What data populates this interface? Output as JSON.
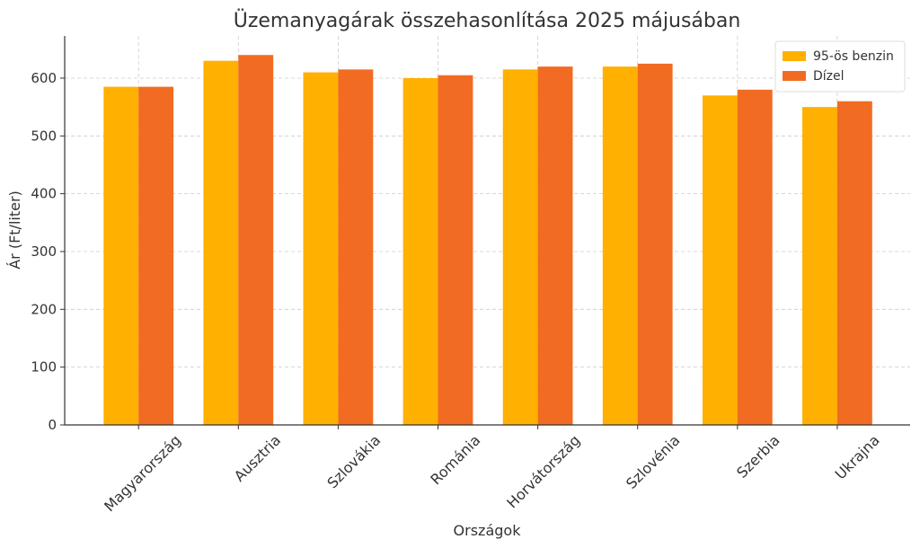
{
  "chart_data": {
    "type": "bar",
    "title": "Üzemanyagárak összehasonlítása 2025 májusában",
    "x_label": "Országok",
    "y_label": "Ár (Ft/liter)",
    "categories": [
      "Magyarország",
      "Ausztria",
      "Szlovákia",
      "Románia",
      "Horvátország",
      "Szlovénia",
      "Szerbia",
      "Ukrajna"
    ],
    "series": [
      {
        "name": "95-ös benzin",
        "color": "#ffb000",
        "values": [
          585,
          630,
          610,
          600,
          615,
          620,
          570,
          550
        ]
      },
      {
        "name": "Dízel",
        "color": "#f26b22",
        "values": [
          585,
          640,
          615,
          605,
          620,
          625,
          580,
          560
        ]
      }
    ],
    "ylim": [
      0,
      673
    ],
    "yticks": [
      0,
      100,
      200,
      300,
      400,
      500,
      600
    ],
    "grid": true,
    "legend": "upper right"
  }
}
